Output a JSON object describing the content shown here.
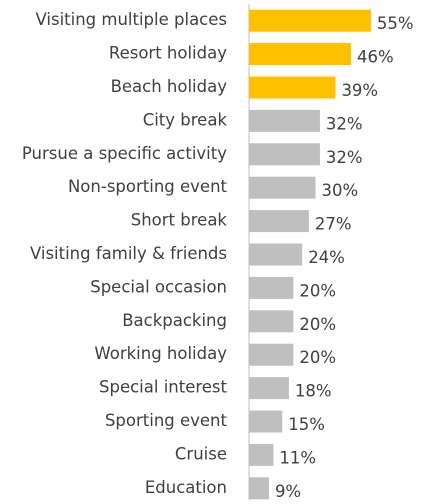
{
  "chart_data": {
    "type": "hbar",
    "categories": [
      "Visiting multiple places",
      "Resort holiday",
      "Beach holiday",
      "City break",
      "Pursue a specific activity",
      "Non-sporting event",
      "Short break",
      "Visiting family & friends",
      "Special occasion",
      "Backpacking",
      "Working holiday",
      "Special interest",
      "Sporting event",
      "Cruise",
      "Education"
    ],
    "values": [
      55,
      46,
      39,
      32,
      32,
      30,
      27,
      24,
      20,
      20,
      20,
      18,
      15,
      11,
      9
    ],
    "value_labels": [
      "55%",
      "46%",
      "39%",
      "32%",
      "32%",
      "30%",
      "27%",
      "24%",
      "20%",
      "20%",
      "20%",
      "18%",
      "15%",
      "11%",
      "9%"
    ],
    "colors": [
      "#FFC000",
      "#FFC000",
      "#FFC000",
      "#BFBFBF",
      "#BFBFBF",
      "#BFBFBF",
      "#BFBFBF",
      "#BFBFBF",
      "#BFBFBF",
      "#BFBFBF",
      "#BFBFBF",
      "#BFBFBF",
      "#BFBFBF",
      "#BFBFBF",
      "#BFBFBF"
    ],
    "xlim": [
      0,
      60
    ]
  }
}
